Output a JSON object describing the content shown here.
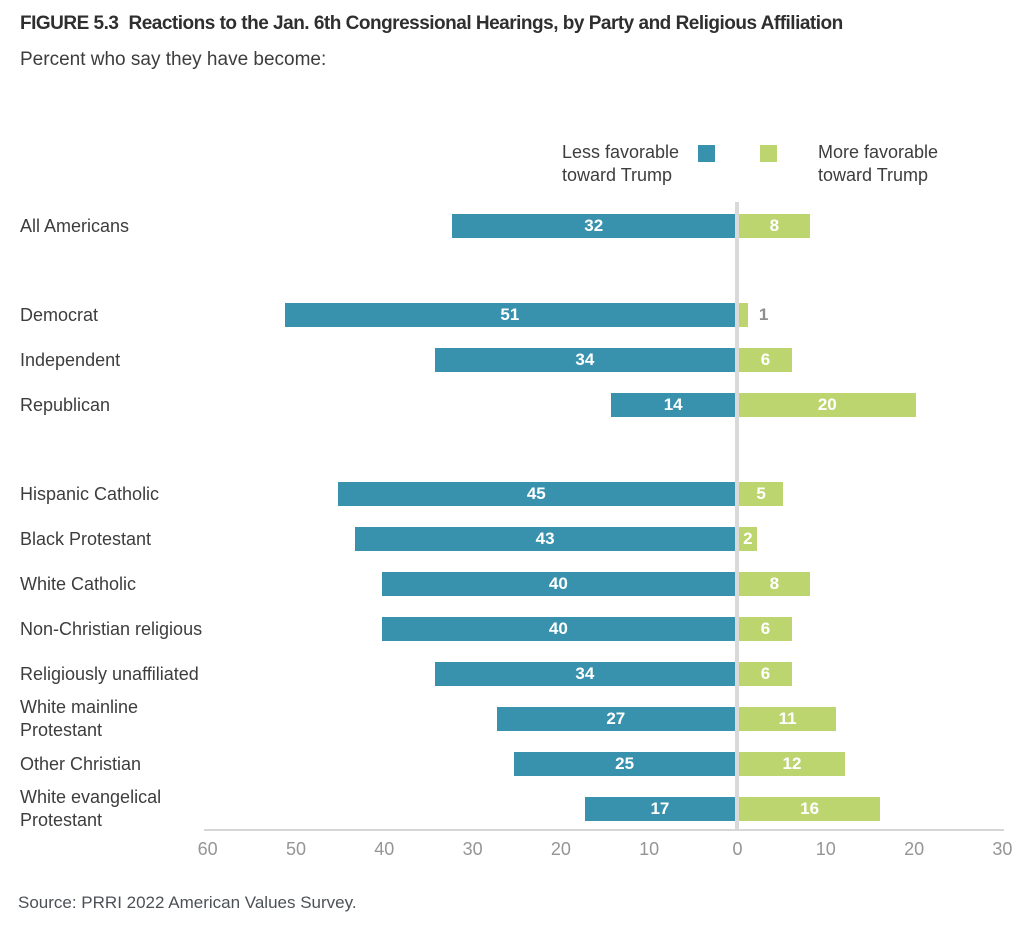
{
  "figure": {
    "label": "FIGURE 5.3",
    "title": "Reactions to the Jan. 6th Congressional Hearings, by Party and Religious Affiliation",
    "subtitle": "Percent who say they have become:",
    "source": "Source: PRRI 2022 American Values Survey."
  },
  "legend": {
    "less": {
      "label": "Less favorable toward Trump"
    },
    "more": {
      "label": "More favorable toward Trump"
    }
  },
  "colors": {
    "less_bar": "#3892ae",
    "more_bar": "#bdd56f",
    "value_label_inside": "#ffffff",
    "value_label_outside": "#8e8e8e",
    "zero_line": "#d9d9d9",
    "axis_line": "#d6d6d6",
    "tick_label": "#959595",
    "category_label": "#3d3d3d"
  },
  "chart_data": {
    "type": "bar",
    "orientation": "horizontal-diverging",
    "title": "Reactions to the Jan. 6th Congressional Hearings, by Party and Religious Affiliation",
    "subtitle": "Percent who say they have become:",
    "unit": "percent",
    "legend_position": "top",
    "gridlines": false,
    "series": [
      {
        "name": "Less favorable toward Trump",
        "color": "#3892ae",
        "direction": "left"
      },
      {
        "name": "More favorable toward Trump",
        "color": "#bdd56f",
        "direction": "right"
      }
    ],
    "groups": [
      {
        "name": "overall",
        "rows": [
          {
            "category": "All Americans",
            "less": 32,
            "more": 8
          }
        ]
      },
      {
        "name": "party",
        "rows": [
          {
            "category": "Democrat",
            "less": 51,
            "more": 1
          },
          {
            "category": "Independent",
            "less": 34,
            "more": 6
          },
          {
            "category": "Republican",
            "less": 14,
            "more": 20
          }
        ]
      },
      {
        "name": "religion",
        "rows": [
          {
            "category": "Hispanic Catholic",
            "less": 45,
            "more": 5
          },
          {
            "category": "Black Protestant",
            "less": 43,
            "more": 2
          },
          {
            "category": "White Catholic",
            "less": 40,
            "more": 8
          },
          {
            "category": "Non-Christian religious",
            "less": 40,
            "more": 6
          },
          {
            "category": "Religiously unaffiliated",
            "less": 34,
            "more": 6
          },
          {
            "category": "White mainline Protestant",
            "less": 27,
            "more": 11
          },
          {
            "category": "Other Christian",
            "less": 25,
            "more": 12
          },
          {
            "category": "White evangelical Protestant",
            "less": 17,
            "more": 16
          }
        ]
      }
    ],
    "x_axis": {
      "ticks": [
        {
          "value": 60,
          "side": "left"
        },
        {
          "value": 50,
          "side": "left"
        },
        {
          "value": 40,
          "side": "left"
        },
        {
          "value": 30,
          "side": "left"
        },
        {
          "value": 20,
          "side": "left"
        },
        {
          "value": 10,
          "side": "left"
        },
        {
          "value": 0,
          "side": "center"
        },
        {
          "value": 10,
          "side": "right"
        },
        {
          "value": 20,
          "side": "right"
        },
        {
          "value": 30,
          "side": "right"
        }
      ],
      "left_max": 60,
      "right_max": 30
    }
  }
}
